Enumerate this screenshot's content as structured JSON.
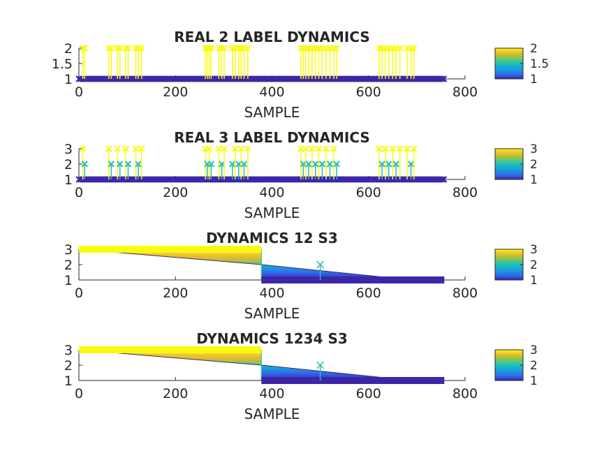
{
  "chart_data": [
    {
      "type": "stem",
      "title": "REAL 2 LABEL DYNAMICS",
      "xlabel": "SAMPLE",
      "ylabel": "",
      "xlim": [
        0,
        800
      ],
      "ylim": [
        1,
        2
      ],
      "xticks": [
        0,
        200,
        400,
        600,
        800
      ],
      "yticks": [
        1,
        1.5,
        2
      ],
      "baseline": 1,
      "n_samples": 757,
      "spikes": [
        {
          "x": 8,
          "value": 2
        },
        {
          "x": 12,
          "value": 2
        },
        {
          "x": 62,
          "value": 2
        },
        {
          "x": 67,
          "value": 2
        },
        {
          "x": 80,
          "value": 2
        },
        {
          "x": 85,
          "value": 2
        },
        {
          "x": 97,
          "value": 2
        },
        {
          "x": 102,
          "value": 2
        },
        {
          "x": 118,
          "value": 2
        },
        {
          "x": 123,
          "value": 2
        },
        {
          "x": 130,
          "value": 2
        },
        {
          "x": 262,
          "value": 2
        },
        {
          "x": 266,
          "value": 2
        },
        {
          "x": 270,
          "value": 2
        },
        {
          "x": 274,
          "value": 2
        },
        {
          "x": 290,
          "value": 2
        },
        {
          "x": 296,
          "value": 2
        },
        {
          "x": 301,
          "value": 2
        },
        {
          "x": 318,
          "value": 2
        },
        {
          "x": 324,
          "value": 2
        },
        {
          "x": 331,
          "value": 2
        },
        {
          "x": 336,
          "value": 2
        },
        {
          "x": 342,
          "value": 2
        },
        {
          "x": 350,
          "value": 2
        },
        {
          "x": 460,
          "value": 2
        },
        {
          "x": 465,
          "value": 2
        },
        {
          "x": 470,
          "value": 2
        },
        {
          "x": 476,
          "value": 2
        },
        {
          "x": 483,
          "value": 2
        },
        {
          "x": 490,
          "value": 2
        },
        {
          "x": 497,
          "value": 2
        },
        {
          "x": 504,
          "value": 2
        },
        {
          "x": 512,
          "value": 2
        },
        {
          "x": 520,
          "value": 2
        },
        {
          "x": 528,
          "value": 2
        },
        {
          "x": 534,
          "value": 2
        },
        {
          "x": 622,
          "value": 2
        },
        {
          "x": 628,
          "value": 2
        },
        {
          "x": 635,
          "value": 2
        },
        {
          "x": 642,
          "value": 2
        },
        {
          "x": 650,
          "value": 2
        },
        {
          "x": 657,
          "value": 2
        },
        {
          "x": 665,
          "value": 2
        },
        {
          "x": 680,
          "value": 2
        },
        {
          "x": 688,
          "value": 2
        },
        {
          "x": 694,
          "value": 2
        }
      ],
      "colorbar": {
        "ticks": [
          1,
          1.5,
          2
        ],
        "range": [
          1,
          2
        ]
      }
    },
    {
      "type": "stem",
      "title": "REAL 3 LABEL DYNAMICS",
      "xlabel": "SAMPLE",
      "ylabel": "",
      "xlim": [
        0,
        800
      ],
      "ylim": [
        1,
        3
      ],
      "xticks": [
        0,
        200,
        400,
        600,
        800
      ],
      "yticks": [
        1,
        2,
        3
      ],
      "baseline": 1,
      "n_samples": 757,
      "spikes": [
        {
          "x": 8,
          "value": 3
        },
        {
          "x": 12,
          "value": 2
        },
        {
          "x": 62,
          "value": 3
        },
        {
          "x": 67,
          "value": 2
        },
        {
          "x": 80,
          "value": 3
        },
        {
          "x": 85,
          "value": 2
        },
        {
          "x": 97,
          "value": 3
        },
        {
          "x": 102,
          "value": 2
        },
        {
          "x": 118,
          "value": 3
        },
        {
          "x": 123,
          "value": 2
        },
        {
          "x": 130,
          "value": 3
        },
        {
          "x": 262,
          "value": 3
        },
        {
          "x": 266,
          "value": 2
        },
        {
          "x": 270,
          "value": 3
        },
        {
          "x": 274,
          "value": 2
        },
        {
          "x": 290,
          "value": 3
        },
        {
          "x": 296,
          "value": 2
        },
        {
          "x": 301,
          "value": 3
        },
        {
          "x": 318,
          "value": 2
        },
        {
          "x": 324,
          "value": 3
        },
        {
          "x": 331,
          "value": 2
        },
        {
          "x": 336,
          "value": 3
        },
        {
          "x": 342,
          "value": 2
        },
        {
          "x": 350,
          "value": 3
        },
        {
          "x": 460,
          "value": 3
        },
        {
          "x": 465,
          "value": 2
        },
        {
          "x": 470,
          "value": 3
        },
        {
          "x": 476,
          "value": 2
        },
        {
          "x": 483,
          "value": 3
        },
        {
          "x": 490,
          "value": 2
        },
        {
          "x": 497,
          "value": 3
        },
        {
          "x": 504,
          "value": 2
        },
        {
          "x": 512,
          "value": 3
        },
        {
          "x": 520,
          "value": 2
        },
        {
          "x": 528,
          "value": 3
        },
        {
          "x": 534,
          "value": 2
        },
        {
          "x": 622,
          "value": 3
        },
        {
          "x": 628,
          "value": 2
        },
        {
          "x": 635,
          "value": 3
        },
        {
          "x": 642,
          "value": 2
        },
        {
          "x": 650,
          "value": 3
        },
        {
          "x": 657,
          "value": 2
        },
        {
          "x": 665,
          "value": 3
        },
        {
          "x": 680,
          "value": 3
        },
        {
          "x": 688,
          "value": 2
        },
        {
          "x": 694,
          "value": 3
        }
      ],
      "colorbar": {
        "ticks": [
          1,
          2,
          3
        ],
        "range": [
          1,
          3
        ]
      }
    },
    {
      "type": "stem",
      "title": "DYNAMICS 12 S3",
      "xlabel": "SAMPLE",
      "ylabel": "",
      "xlim": [
        0,
        800
      ],
      "ylim": [
        1,
        3
      ],
      "xticks": [
        0,
        200,
        400,
        600,
        800
      ],
      "yticks": [
        1,
        2,
        3
      ],
      "baseline": 1,
      "segments": [
        {
          "x_start": 0,
          "x_end": 378,
          "value": 3
        },
        {
          "x_start": 378,
          "x_end": 757,
          "value": 1
        }
      ],
      "outliers": [
        {
          "x": 500,
          "value": 2
        }
      ],
      "colorbar": {
        "ticks": [
          1,
          2,
          3
        ],
        "range": [
          1,
          3
        ]
      }
    },
    {
      "type": "stem",
      "title": "DYNAMICS 1234 S3",
      "xlabel": "SAMPLE",
      "ylabel": "",
      "xlim": [
        0,
        800
      ],
      "ylim": [
        1,
        3
      ],
      "xticks": [
        0,
        200,
        400,
        600,
        800
      ],
      "yticks": [
        1,
        2,
        3
      ],
      "baseline": 1,
      "segments": [
        {
          "x_start": 0,
          "x_end": 378,
          "value": 3
        },
        {
          "x_start": 378,
          "x_end": 757,
          "value": 1
        }
      ],
      "outliers": [
        {
          "x": 500,
          "value": 2
        }
      ],
      "colorbar": {
        "ticks": [
          1,
          2,
          3
        ],
        "range": [
          1,
          3
        ]
      }
    }
  ],
  "colors": {
    "parula_low": "#3e26a8",
    "parula_mid": "#14b9c6",
    "parula_high": "#f9fb0e",
    "axis": "#262626"
  }
}
